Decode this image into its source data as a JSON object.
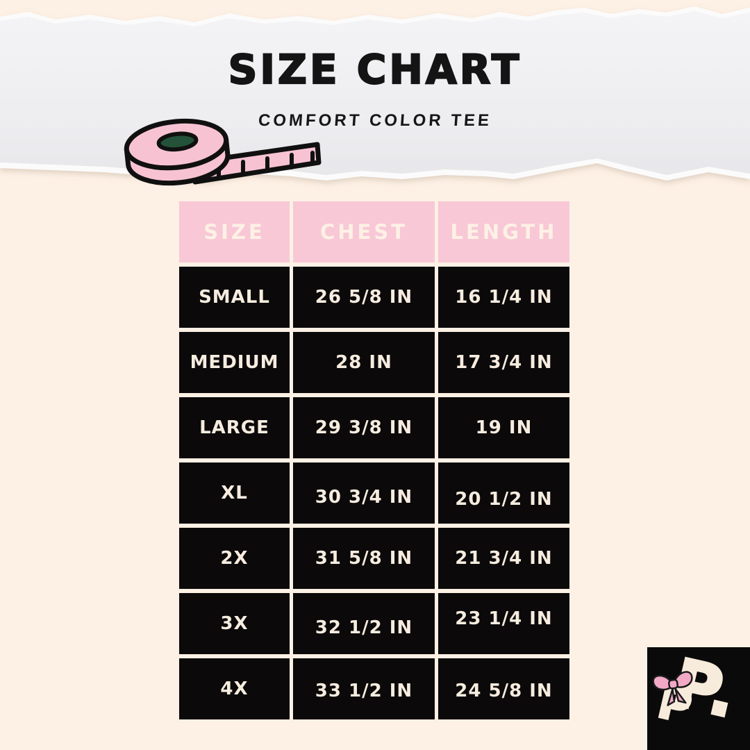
{
  "header": {
    "title": "SIZE CHART",
    "subtitle": "COMFORT COLOR TEE"
  },
  "chart_data": {
    "type": "table",
    "title": "SIZE CHART",
    "subtitle": "COMFORT COLOR TEE",
    "columns": [
      "SIZE",
      "CHEST",
      "LENGTH"
    ],
    "rows": [
      [
        "SMALL",
        "26 5/8 IN",
        "16 1/4 IN"
      ],
      [
        "MEDIUM",
        "28 IN",
        "17 3/4 IN"
      ],
      [
        "LARGE",
        "29 3/8 IN",
        "19 IN"
      ],
      [
        "XL",
        "30 3/4 IN",
        "20 1/2 IN"
      ],
      [
        "2X",
        "31 5/8 IN",
        "21 3/4 IN"
      ],
      [
        "3X",
        "32 1/2 IN",
        "23 1/4 IN"
      ],
      [
        "4X",
        "33 1/2 IN",
        "24 5/8 IN"
      ]
    ],
    "units": "IN"
  },
  "logo": {
    "text": "P."
  },
  "icons": {
    "tape_measure": "tape-measure-icon",
    "bow": "bow-icon",
    "torn_paper": "torn-paper-edge"
  },
  "colors": {
    "background": "#fdf0e4",
    "paper": "#f0f0f2",
    "header_pink": "#f8c8d6",
    "cell_black": "#0b0909",
    "cell_text": "#f6ecdf",
    "tape_pink": "#f7c3d3",
    "tape_hole_green": "#245239",
    "bow_pink": "#f2a9c6",
    "title_black": "#141414"
  }
}
